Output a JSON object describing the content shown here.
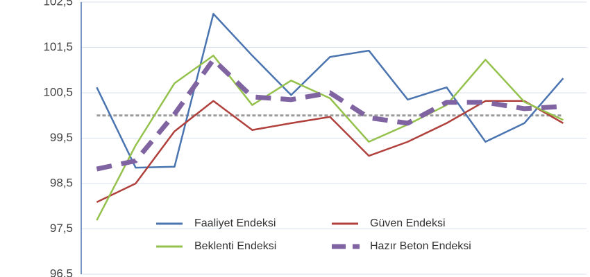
{
  "chart_data": {
    "type": "line",
    "categories": [
      null,
      null,
      null,
      null,
      null,
      null,
      null,
      null,
      null,
      null,
      null,
      null,
      null
    ],
    "series": [
      {
        "name": "Faaliyet Endeksi",
        "color": "#4a74b0",
        "dash": false,
        "values": [
          100.62,
          98.85,
          98.87,
          102.24,
          101.32,
          100.45,
          101.29,
          101.43,
          100.35,
          100.62,
          99.42,
          99.83,
          100.82
        ]
      },
      {
        "name": "Güven Endeksi",
        "color": "#b0403c",
        "dash": false,
        "values": [
          98.09,
          98.5,
          99.65,
          100.32,
          99.68,
          99.83,
          99.97,
          99.11,
          99.42,
          99.83,
          100.32,
          100.32,
          99.83
        ]
      },
      {
        "name": "Beklenti Endeksi",
        "color": "#94c14b",
        "dash": false,
        "values": [
          97.69,
          99.34,
          100.71,
          101.32,
          100.23,
          100.77,
          100.38,
          99.42,
          99.8,
          100.23,
          101.23,
          100.3,
          99.9
        ]
      },
      {
        "name": "Hazır Beton Endeksi",
        "color": "#8064a2",
        "dash": true,
        "values": [
          98.82,
          99.0,
          100.03,
          101.23,
          100.41,
          100.35,
          100.5,
          99.95,
          99.83,
          100.29,
          100.29,
          100.15,
          100.2
        ]
      }
    ],
    "reference_line": {
      "value": 100,
      "color": "#9a9a9a"
    },
    "ylim": [
      96.5,
      102.5
    ],
    "yticks": [
      {
        "value": 96.5,
        "label": "96,5"
      },
      {
        "value": 97.5,
        "label": "97,5"
      },
      {
        "value": 98.5,
        "label": "98,5"
      },
      {
        "value": 99.5,
        "label": "99,5"
      },
      {
        "value": 100.5,
        "label": "100,5"
      },
      {
        "value": 101.5,
        "label": "101,5"
      },
      {
        "value": 102.5,
        "label": "102,5"
      }
    ],
    "grid": true,
    "legend": "bottom"
  }
}
